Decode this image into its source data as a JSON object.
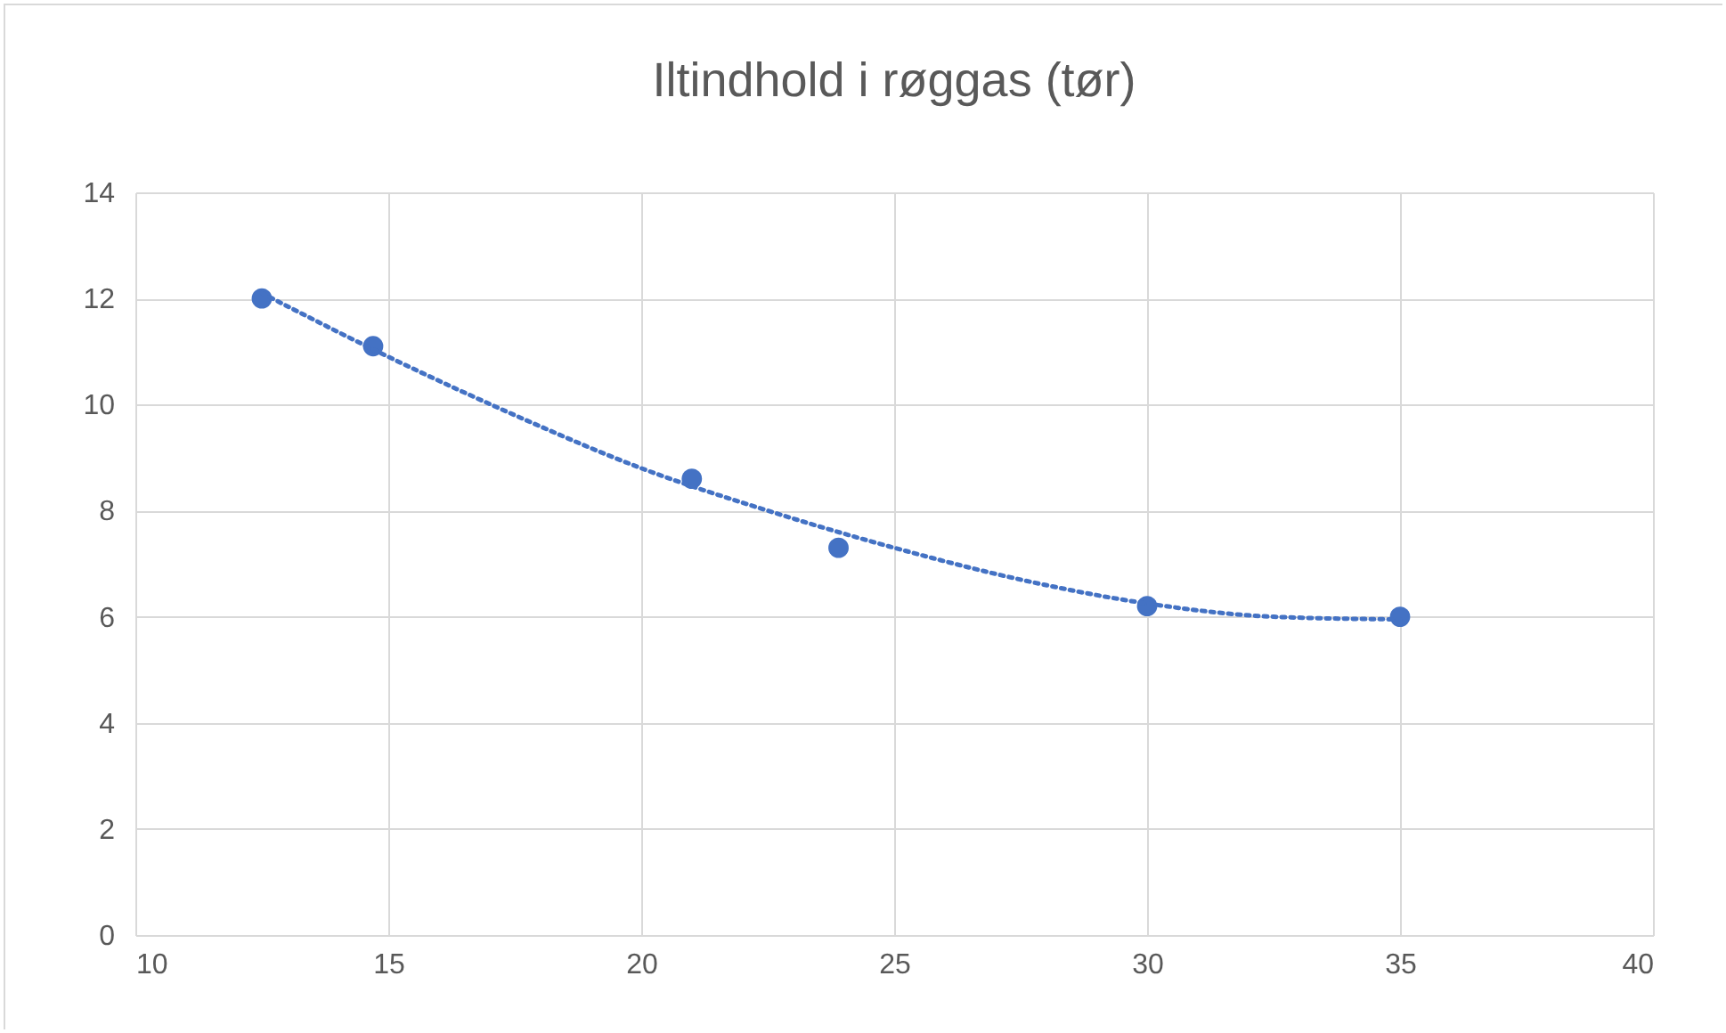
{
  "chart_data": {
    "type": "scatter",
    "title": "Iltindhold i røggas (tør)",
    "xlim": [
      10,
      40
    ],
    "xticks": [
      10,
      15,
      20,
      25,
      30,
      35,
      40
    ],
    "ylim": [
      0,
      14
    ],
    "yticks": [
      0,
      2,
      4,
      6,
      8,
      10,
      12,
      14
    ],
    "grid": true,
    "marker": "circle",
    "series": [
      {
        "color": "#4472c4",
        "x": [
          12.5,
          14.7,
          21,
          23.9,
          30,
          35
        ],
        "values": [
          12,
          11.1,
          8.6,
          7.3,
          6.2,
          6
        ]
      },
      {
        "type": "line",
        "color": "#4472c4",
        "line_style": "dotted",
        "marker": "none",
        "x": [
          12.5,
          15,
          17.5,
          20,
          22.5,
          25,
          27.5,
          30,
          32.5,
          35
        ],
        "values": [
          12.1,
          10.9,
          9.8,
          8.8,
          8,
          7.3,
          6.7,
          6.25,
          6,
          5.95
        ]
      }
    ]
  }
}
